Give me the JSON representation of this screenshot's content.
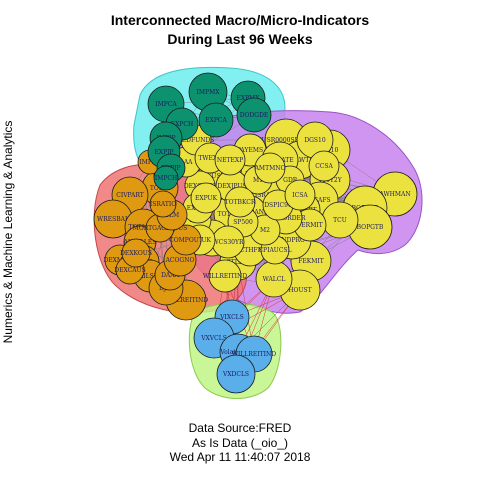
{
  "title_line1": "Interconnected Macro/Micro-Indicators",
  "title_line2": "During Last 96 Weeks",
  "ylabel": "Numerics & Machine Learning & Analytics",
  "footer": {
    "line1": "Data Source:FRED",
    "line2": "As Is Data (_oio_)",
    "line3": "Wed Apr 11 11:40:07 2018"
  },
  "colors": {
    "teal_node": "#0d9270",
    "teal_group": "#4de8ea",
    "yellow_node": "#ece23f",
    "purple_group": "#c883ef",
    "orange_node": "#e09a12",
    "red_group": "#f07474",
    "blue_node": "#5aaee9",
    "green_group": "#bff585",
    "edge": "#777777",
    "edge_red": "#d93535"
  },
  "groups": [
    {
      "name": "teal",
      "fill": "#4de8ea",
      "stroke": "#3cc6c8"
    },
    {
      "name": "purple",
      "fill": "#c883ef",
      "stroke": "#9b52c6"
    },
    {
      "name": "red",
      "fill": "#f07474",
      "stroke": "#c64848"
    },
    {
      "name": "green",
      "fill": "#bff585",
      "stroke": "#8cc950"
    }
  ],
  "nodes": {
    "teal": [
      "IMPMX",
      "EXPMX",
      "IMPCA",
      "EXPCA",
      "DODGDE",
      "EXPCH",
      "IMPJP",
      "EXPJP",
      "EXPJP",
      "IMPCH"
    ],
    "yellow": [
      "AWHMAN",
      "BOPGTB",
      "BOPGTB",
      "CUSR0000SETB01",
      "FEKMIT",
      "HOUST",
      "WALCL",
      "INDPRO",
      "DTWEXM",
      "STLFSI",
      "TOTALSL",
      "VIXCLS",
      "DCOILWTICO",
      "GS10",
      "DGS10",
      "T10Y2Y",
      "PAYEMS",
      "UNRATE",
      "ISRATIO",
      "RSAFS",
      "TCU",
      "PSAVERT",
      "DTCTHFNM",
      "MORTGAGE30US",
      "WILLREITIND",
      "DEXUSEU",
      "DEXJPUS",
      "DEXCHUS",
      "BAA",
      "AAA",
      "FEDFUNDS",
      "TWEXB",
      "NETEXP",
      "PERMIT",
      "NEWORDER",
      "BUSLOANS",
      "CPIAUCSL",
      "M2",
      "M1",
      "GDP",
      "SP500",
      "WCS30YR",
      "IMPUK",
      "EXPCH",
      "EXPUK",
      "TOTBKCR",
      "DSPIC96",
      "ICSA",
      "CCSA",
      "AMTMNO"
    ],
    "orange": [
      "TODIP",
      "IMPIT",
      "CIVPART",
      "WRESBAL",
      "TOTALSA",
      "ALTSALES",
      "RRSFS",
      "RETAILSMNSA",
      "DEXMXUS",
      "DEXCAUS",
      "DEXKOUS",
      "WILLREITIND",
      "DJIA",
      "DAAA",
      "ACOGNO",
      "COMPOUT",
      "MORTGAGE15US",
      "SLM",
      "ISRATIO",
      "IMPFR"
    ],
    "blue": [
      "VIXCLS",
      "VXVCLS",
      "VolatileWTI",
      "WILLREITIND",
      "VXDCLS"
    ]
  }
}
